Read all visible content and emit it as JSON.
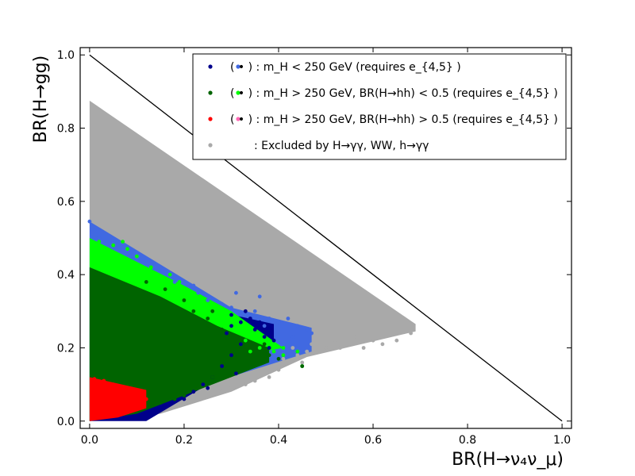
{
  "chart_data": {
    "type": "scatter",
    "xlabel": "BR(H→ν₄ν_μ)",
    "ylabel": "BR(H→gg)",
    "xlim": [
      -0.02,
      1.02
    ],
    "ylim": [
      -0.02,
      1.02
    ],
    "x_ticks": [
      0.0,
      0.2,
      0.4,
      0.6,
      0.8,
      1.0
    ],
    "y_ticks": [
      0.0,
      0.2,
      0.4,
      0.6,
      0.8,
      1.0
    ],
    "x_tick_labels": [
      "0.0",
      "0.2",
      "0.4",
      "0.6",
      "0.8",
      "1.0"
    ],
    "y_tick_labels": [
      "0.0",
      "0.2",
      "0.4",
      "0.6",
      "0.8",
      "1.0"
    ],
    "grid": false,
    "legend_position": "top-right",
    "boundary_line": {
      "x": [
        0.0,
        1.0
      ],
      "y": [
        1.0,
        0.0
      ]
    },
    "legend": [
      {
        "marker_color": "#00008b",
        "alt_color": "#4169e1",
        "text": "( • ) : m_H < 250 GeV (requires e_{4,5} )"
      },
      {
        "marker_color": "#006400",
        "alt_color": "#00ff00",
        "text": "( • ) : m_H > 250 GeV, BR(H→hh) < 0.5 (requires e_{4,5} )"
      },
      {
        "marker_color": "#ff0000",
        "alt_color": "#ff69b4",
        "text": "( • ) : m_H > 250 GeV, BR(H→hh) > 0.5 (requires e_{4,5} )"
      },
      {
        "marker_color": "#a9a9a9",
        "alt_color": "",
        "text": ": Excluded by H→γγ, WW, h→γγ"
      }
    ],
    "regions": [
      {
        "name": "excluded",
        "color": "#a9a9a9",
        "polygon": [
          [
            0.0,
            0.0
          ],
          [
            0.0,
            0.875
          ],
          [
            0.69,
            0.265
          ],
          [
            0.69,
            0.245
          ],
          [
            0.46,
            0.175
          ],
          [
            0.3,
            0.08
          ],
          [
            0.15,
            0.02
          ],
          [
            0.0,
            0.0
          ]
        ]
      },
      {
        "name": "light-blue",
        "color": "#4169e1",
        "polygon": [
          [
            0.0,
            0.0
          ],
          [
            0.0,
            0.545
          ],
          [
            0.3,
            0.31
          ],
          [
            0.47,
            0.255
          ],
          [
            0.47,
            0.19
          ],
          [
            0.0,
            0.0
          ]
        ]
      },
      {
        "name": "navy",
        "color": "#00008b",
        "polygon": [
          [
            0.0,
            0.0
          ],
          [
            0.0,
            0.42
          ],
          [
            0.2,
            0.32
          ],
          [
            0.39,
            0.265
          ],
          [
            0.39,
            0.2
          ],
          [
            0.25,
            0.1
          ],
          [
            0.12,
            0.0
          ],
          [
            0.0,
            0.0
          ]
        ]
      },
      {
        "name": "bright-green",
        "color": "#00ff00",
        "polygon": [
          [
            0.0,
            0.0
          ],
          [
            0.0,
            0.5
          ],
          [
            0.2,
            0.37
          ],
          [
            0.3,
            0.3
          ],
          [
            0.41,
            0.2
          ],
          [
            0.2,
            0.15
          ],
          [
            0.0,
            0.0
          ]
        ]
      },
      {
        "name": "dark-green",
        "color": "#006400",
        "polygon": [
          [
            0.0,
            0.0
          ],
          [
            0.0,
            0.42
          ],
          [
            0.15,
            0.34
          ],
          [
            0.27,
            0.26
          ],
          [
            0.38,
            0.2
          ],
          [
            0.38,
            0.16
          ],
          [
            0.2,
            0.07
          ],
          [
            0.1,
            0.02
          ],
          [
            0.0,
            0.0
          ]
        ]
      },
      {
        "name": "red",
        "color": "#ff0000",
        "polygon": [
          [
            0.0,
            0.0
          ],
          [
            0.0,
            0.12
          ],
          [
            0.12,
            0.085
          ],
          [
            0.12,
            0.035
          ],
          [
            0.06,
            0.01
          ],
          [
            0.0,
            0.0
          ]
        ]
      }
    ],
    "series": [
      {
        "color": "#a9a9a9",
        "points": [
          [
            0.47,
            0.21
          ],
          [
            0.5,
            0.2
          ],
          [
            0.52,
            0.22
          ],
          [
            0.55,
            0.21
          ],
          [
            0.58,
            0.2
          ],
          [
            0.6,
            0.22
          ],
          [
            0.62,
            0.21
          ],
          [
            0.65,
            0.22
          ],
          [
            0.68,
            0.24
          ],
          [
            0.45,
            0.16
          ],
          [
            0.44,
            0.18
          ],
          [
            0.4,
            0.14
          ],
          [
            0.38,
            0.12
          ],
          [
            0.35,
            0.11
          ],
          [
            0.33,
            0.1
          ],
          [
            0.3,
            0.09
          ],
          [
            0.28,
            0.08
          ],
          [
            0.43,
            0.2
          ],
          [
            0.56,
            0.23
          ],
          [
            0.66,
            0.25
          ],
          [
            0.34,
            0.12
          ],
          [
            0.46,
            0.19
          ],
          [
            0.53,
            0.2
          ],
          [
            0.41,
            0.17
          ]
        ]
      },
      {
        "color": "#4169e1",
        "points": [
          [
            0.0,
            0.545
          ],
          [
            0.01,
            0.52
          ],
          [
            0.02,
            0.5
          ],
          [
            0.25,
            0.33
          ],
          [
            0.3,
            0.31
          ],
          [
            0.32,
            0.29
          ],
          [
            0.35,
            0.3
          ],
          [
            0.38,
            0.28
          ],
          [
            0.4,
            0.27
          ],
          [
            0.42,
            0.28
          ],
          [
            0.44,
            0.26
          ],
          [
            0.46,
            0.25
          ],
          [
            0.47,
            0.24
          ],
          [
            0.36,
            0.34
          ],
          [
            0.31,
            0.35
          ],
          [
            0.28,
            0.32
          ],
          [
            0.23,
            0.35
          ],
          [
            0.15,
            0.42
          ],
          [
            0.18,
            0.38
          ],
          [
            0.22,
            0.37
          ],
          [
            0.37,
            0.26
          ],
          [
            0.43,
            0.23
          ]
        ]
      },
      {
        "color": "#00008b",
        "points": [
          [
            0.3,
            0.26
          ],
          [
            0.32,
            0.27
          ],
          [
            0.34,
            0.28
          ],
          [
            0.36,
            0.27
          ],
          [
            0.38,
            0.25
          ],
          [
            0.37,
            0.23
          ],
          [
            0.39,
            0.22
          ],
          [
            0.33,
            0.3
          ],
          [
            0.35,
            0.25
          ],
          [
            0.24,
            0.1
          ],
          [
            0.22,
            0.08
          ],
          [
            0.2,
            0.06
          ],
          [
            0.16,
            0.04
          ],
          [
            0.14,
            0.03
          ],
          [
            0.12,
            0.02
          ],
          [
            0.26,
            0.12
          ],
          [
            0.28,
            0.15
          ],
          [
            0.3,
            0.18
          ],
          [
            0.32,
            0.21
          ],
          [
            0.3,
            0.29
          ],
          [
            0.29,
            0.24
          ],
          [
            0.25,
            0.09
          ],
          [
            0.31,
            0.13
          ],
          [
            0.38,
            0.2
          ]
        ]
      },
      {
        "color": "#00ff00",
        "points": [
          [
            0.05,
            0.48
          ],
          [
            0.08,
            0.47
          ],
          [
            0.1,
            0.45
          ],
          [
            0.13,
            0.42
          ],
          [
            0.17,
            0.4
          ],
          [
            0.19,
            0.38
          ],
          [
            0.21,
            0.35
          ],
          [
            0.24,
            0.33
          ],
          [
            0.27,
            0.3
          ],
          [
            0.33,
            0.22
          ],
          [
            0.36,
            0.2
          ],
          [
            0.39,
            0.19
          ],
          [
            0.41,
            0.2
          ],
          [
            0.41,
            0.18
          ],
          [
            0.44,
            0.19
          ],
          [
            0.29,
            0.26
          ],
          [
            0.34,
            0.19
          ],
          [
            0.45,
            0.15
          ],
          [
            0.07,
            0.49
          ],
          [
            0.02,
            0.49
          ]
        ]
      },
      {
        "color": "#006400",
        "points": [
          [
            0.22,
            0.3
          ],
          [
            0.25,
            0.28
          ],
          [
            0.28,
            0.25
          ],
          [
            0.3,
            0.22
          ],
          [
            0.32,
            0.2
          ],
          [
            0.34,
            0.21
          ],
          [
            0.36,
            0.19
          ],
          [
            0.38,
            0.18
          ],
          [
            0.35,
            0.17
          ],
          [
            0.33,
            0.16
          ],
          [
            0.31,
            0.15
          ],
          [
            0.29,
            0.14
          ],
          [
            0.26,
            0.12
          ],
          [
            0.23,
            0.1
          ],
          [
            0.2,
            0.07
          ],
          [
            0.18,
            0.06
          ],
          [
            0.15,
            0.05
          ],
          [
            0.4,
            0.17
          ],
          [
            0.45,
            0.15
          ],
          [
            0.37,
            0.21
          ],
          [
            0.26,
            0.3
          ],
          [
            0.2,
            0.33
          ],
          [
            0.16,
            0.36
          ],
          [
            0.12,
            0.38
          ]
        ]
      },
      {
        "color": "#ff0000",
        "points": [
          [
            0.01,
            0.115
          ],
          [
            0.03,
            0.11
          ],
          [
            0.05,
            0.1
          ],
          [
            0.08,
            0.09
          ],
          [
            0.1,
            0.085
          ],
          [
            0.11,
            0.07
          ],
          [
            0.12,
            0.06
          ],
          [
            0.1,
            0.04
          ],
          [
            0.08,
            0.03
          ],
          [
            0.06,
            0.02
          ],
          [
            0.04,
            0.015
          ]
        ]
      }
    ]
  }
}
